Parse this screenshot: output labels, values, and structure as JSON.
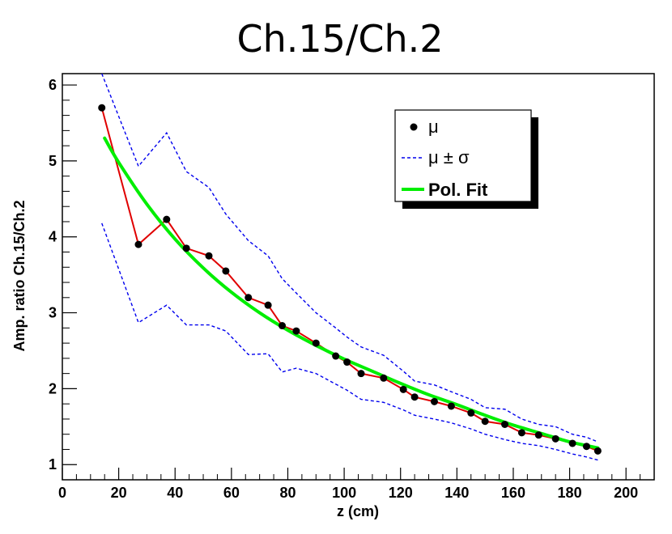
{
  "chart_data": {
    "type": "line",
    "title": "Ch.15/Ch.2",
    "xlabel": "z (cm)",
    "ylabel": "Amp. ratio Ch.15/Ch.2",
    "xlim": [
      0,
      210
    ],
    "ylim": [
      0.8,
      6.15
    ],
    "x_ticks": [
      0,
      20,
      40,
      60,
      80,
      100,
      120,
      140,
      160,
      180,
      200
    ],
    "x_tick_labels": [
      "0",
      "20",
      "40",
      "60",
      "80",
      "100",
      "120",
      "140",
      "160",
      "180",
      "200"
    ],
    "y_ticks": [
      1,
      2,
      3,
      4,
      5,
      6
    ],
    "y_tick_labels": [
      "1",
      "2",
      "3",
      "4",
      "5",
      "6"
    ],
    "grid": false,
    "legend_position": "top-right",
    "legend": {
      "mu": "μ",
      "mu_sigma": "μ ± σ",
      "fit": "Pol. Fit"
    },
    "series": [
      {
        "name": "μ",
        "style": "markers+line",
        "color": "#e00000",
        "marker_color": "#000000",
        "x": [
          14,
          27,
          37,
          44,
          52,
          58,
          66,
          73,
          78,
          83,
          90,
          97,
          101,
          106,
          114,
          121,
          125,
          132,
          138,
          145,
          150,
          157,
          163,
          169,
          175,
          181,
          186,
          190
        ],
        "y": [
          5.7,
          3.9,
          4.23,
          3.85,
          3.75,
          3.55,
          3.2,
          3.1,
          2.83,
          2.76,
          2.6,
          2.43,
          2.35,
          2.2,
          2.14,
          1.99,
          1.89,
          1.83,
          1.77,
          1.68,
          1.57,
          1.53,
          1.42,
          1.39,
          1.34,
          1.28,
          1.24,
          1.18
        ]
      },
      {
        "name": "μ + σ",
        "style": "dashed",
        "color": "#0000ee",
        "x": [
          14,
          27,
          37,
          44,
          52,
          58,
          66,
          73,
          78,
          83,
          90,
          97,
          101,
          106,
          114,
          121,
          125,
          132,
          138,
          145,
          150,
          157,
          163,
          169,
          175,
          181,
          186,
          190
        ],
        "y": [
          6.15,
          4.93,
          5.37,
          4.86,
          4.65,
          4.3,
          3.95,
          3.75,
          3.45,
          3.26,
          3.0,
          2.8,
          2.68,
          2.55,
          2.44,
          2.23,
          2.1,
          2.05,
          1.96,
          1.86,
          1.75,
          1.73,
          1.6,
          1.53,
          1.5,
          1.4,
          1.36,
          1.3
        ]
      },
      {
        "name": "μ − σ",
        "style": "dashed",
        "color": "#0000ee",
        "x": [
          14,
          27,
          37,
          44,
          52,
          58,
          66,
          73,
          78,
          83,
          90,
          97,
          101,
          106,
          114,
          121,
          125,
          132,
          138,
          145,
          150,
          157,
          163,
          169,
          175,
          181,
          186,
          190
        ],
        "y": [
          4.18,
          2.87,
          3.1,
          2.84,
          2.84,
          2.76,
          2.45,
          2.46,
          2.22,
          2.27,
          2.2,
          2.06,
          1.98,
          1.86,
          1.82,
          1.72,
          1.65,
          1.6,
          1.55,
          1.47,
          1.4,
          1.33,
          1.28,
          1.25,
          1.2,
          1.14,
          1.1,
          1.06
        ]
      },
      {
        "name": "Pol. Fit",
        "style": "smooth",
        "color": "#00ee00",
        "x": [
          15,
          20,
          30,
          40,
          50,
          60,
          70,
          80,
          90,
          100,
          110,
          120,
          130,
          140,
          150,
          160,
          170,
          180,
          190
        ],
        "y": [
          5.3,
          4.98,
          4.43,
          3.97,
          3.59,
          3.27,
          3.0,
          2.77,
          2.57,
          2.39,
          2.23,
          2.07,
          1.92,
          1.79,
          1.65,
          1.52,
          1.41,
          1.3,
          1.22
        ]
      }
    ]
  }
}
